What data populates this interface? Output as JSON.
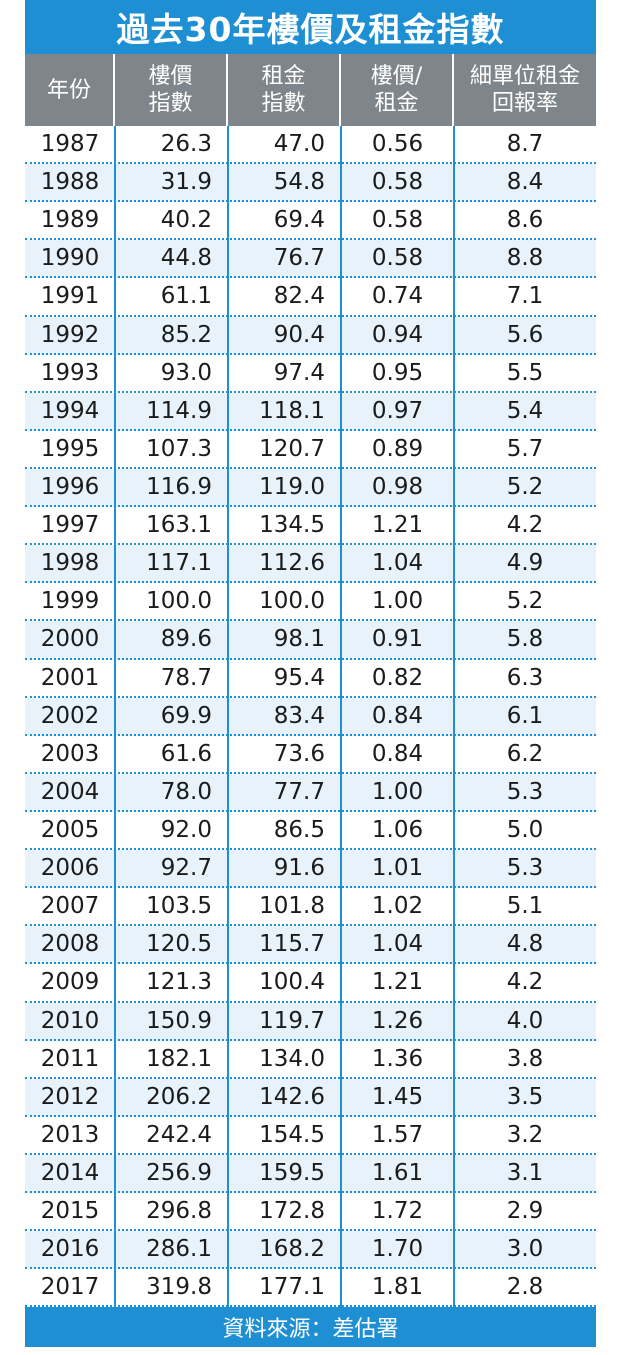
{
  "chart_data": {
    "type": "table",
    "title": "過去30年樓價及租金指數",
    "columns": [
      {
        "line1": "年份",
        "line2": ""
      },
      {
        "line1": "樓價",
        "line2": "指數"
      },
      {
        "line1": "租金",
        "line2": "指數"
      },
      {
        "line1": "樓價/",
        "line2": "租金"
      },
      {
        "line1": "細單位租金",
        "line2": "回報率"
      }
    ],
    "rows": [
      [
        "1987",
        "26.3",
        "47.0",
        "0.56",
        "8.7"
      ],
      [
        "1988",
        "31.9",
        "54.8",
        "0.58",
        "8.4"
      ],
      [
        "1989",
        "40.2",
        "69.4",
        "0.58",
        "8.6"
      ],
      [
        "1990",
        "44.8",
        "76.7",
        "0.58",
        "8.8"
      ],
      [
        "1991",
        "61.1",
        "82.4",
        "0.74",
        "7.1"
      ],
      [
        "1992",
        "85.2",
        "90.4",
        "0.94",
        "5.6"
      ],
      [
        "1993",
        "93.0",
        "97.4",
        "0.95",
        "5.5"
      ],
      [
        "1994",
        "114.9",
        "118.1",
        "0.97",
        "5.4"
      ],
      [
        "1995",
        "107.3",
        "120.7",
        "0.89",
        "5.7"
      ],
      [
        "1996",
        "116.9",
        "119.0",
        "0.98",
        "5.2"
      ],
      [
        "1997",
        "163.1",
        "134.5",
        "1.21",
        "4.2"
      ],
      [
        "1998",
        "117.1",
        "112.6",
        "1.04",
        "4.9"
      ],
      [
        "1999",
        "100.0",
        "100.0",
        "1.00",
        "5.2"
      ],
      [
        "2000",
        "89.6",
        "98.1",
        "0.91",
        "5.8"
      ],
      [
        "2001",
        "78.7",
        "95.4",
        "0.82",
        "6.3"
      ],
      [
        "2002",
        "69.9",
        "83.4",
        "0.84",
        "6.1"
      ],
      [
        "2003",
        "61.6",
        "73.6",
        "0.84",
        "6.2"
      ],
      [
        "2004",
        "78.0",
        "77.7",
        "1.00",
        "5.3"
      ],
      [
        "2005",
        "92.0",
        "86.5",
        "1.06",
        "5.0"
      ],
      [
        "2006",
        "92.7",
        "91.6",
        "1.01",
        "5.3"
      ],
      [
        "2007",
        "103.5",
        "101.8",
        "1.02",
        "5.1"
      ],
      [
        "2008",
        "120.5",
        "115.7",
        "1.04",
        "4.8"
      ],
      [
        "2009",
        "121.3",
        "100.4",
        "1.21",
        "4.2"
      ],
      [
        "2010",
        "150.9",
        "119.7",
        "1.26",
        "4.0"
      ],
      [
        "2011",
        "182.1",
        "134.0",
        "1.36",
        "3.8"
      ],
      [
        "2012",
        "206.2",
        "142.6",
        "1.45",
        "3.5"
      ],
      [
        "2013",
        "242.4",
        "154.5",
        "1.57",
        "3.2"
      ],
      [
        "2014",
        "256.9",
        "159.5",
        "1.61",
        "3.1"
      ],
      [
        "2015",
        "296.8",
        "172.8",
        "1.72",
        "2.9"
      ],
      [
        "2016",
        "286.1",
        "168.2",
        "1.70",
        "3.0"
      ],
      [
        "2017",
        "319.8",
        "177.1",
        "1.81",
        "2.8"
      ]
    ],
    "source": "資料來源：差估署"
  },
  "colors": {
    "accent": "#1f8fd4",
    "header": "#7f868b",
    "stripe": "#e7f2fa"
  }
}
